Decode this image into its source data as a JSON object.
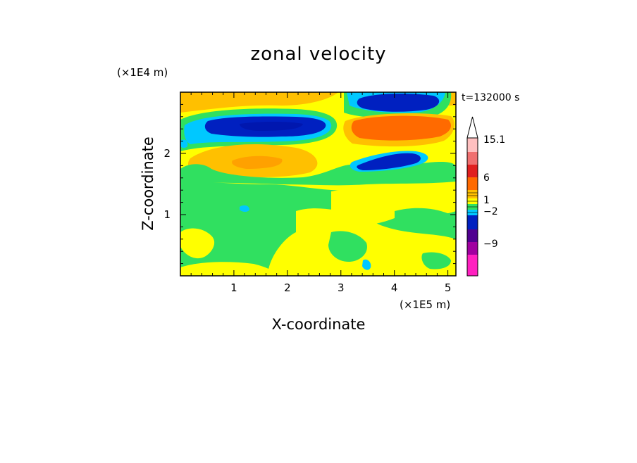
{
  "chart_data": {
    "type": "heatmap",
    "title": "zonal velocity",
    "xlabel": "X-coordinate",
    "ylabel": "Z-coordinate",
    "x_scale_label": "(×1E5 m)",
    "y_scale_label": "(×1E4 m)",
    "time_label": "t=132000 s",
    "xlim": [
      0,
      5.15
    ],
    "ylim": [
      0,
      3.0
    ],
    "x_ticks": [
      "1",
      "2",
      "3",
      "4",
      "5"
    ],
    "x_tick_values": [
      1,
      2,
      3,
      4,
      5
    ],
    "y_ticks": [
      "1",
      "2"
    ],
    "y_tick_values": [
      1,
      2
    ],
    "colorbar": {
      "labels": [
        "15.1",
        "6",
        "1",
        "−2",
        "−9"
      ],
      "label_values": [
        15.1,
        6,
        1,
        -2,
        -9
      ],
      "levels_top_to_bottom": [
        {
          "color": "#ffc0c0"
        },
        {
          "color": "#f07070"
        },
        {
          "color": "#e02020"
        },
        {
          "color": "#ff6a00"
        },
        {
          "color": "#ffc000"
        },
        {
          "color": "#ffff00"
        },
        {
          "color": "#30e060"
        },
        {
          "color": "#00c8ff"
        },
        {
          "color": "#0020c0"
        },
        {
          "color": "#500090"
        },
        {
          "color": "#a000a0"
        },
        {
          "color": "#ff20c0"
        }
      ]
    },
    "regions": [
      {
        "id": "jet-negative-left",
        "color": "#0020c0",
        "x_range": [
          0.6,
          2.8
        ],
        "z_range": [
          2.3,
          2.6
        ],
        "sign": "negative"
      },
      {
        "id": "jet-negative-upper-right",
        "color": "#0020c0",
        "x_range": [
          3.3,
          4.9
        ],
        "z_range": [
          2.75,
          3.0
        ],
        "sign": "negative"
      },
      {
        "id": "jet-negative-mid-right",
        "color": "#0020c0",
        "x_range": [
          3.4,
          4.4
        ],
        "z_range": [
          1.75,
          2.05
        ],
        "sign": "negative"
      },
      {
        "id": "jet-positive-right",
        "color": "#ff6a00",
        "x_range": [
          3.3,
          5.0
        ],
        "z_range": [
          2.3,
          2.6
        ],
        "sign": "positive"
      },
      {
        "id": "positive-mid-left",
        "color": "#ffc000",
        "x_range": [
          0.5,
          2.4
        ],
        "z_range": [
          1.75,
          2.05
        ],
        "sign": "positive"
      },
      {
        "id": "lower-field",
        "color": "#30e060",
        "x_range": [
          0,
          5.1
        ],
        "z_range": [
          0,
          1.5
        ],
        "sign": "weak"
      }
    ],
    "colors": {
      "background": "#ffffff",
      "frame": "#000000"
    }
  }
}
